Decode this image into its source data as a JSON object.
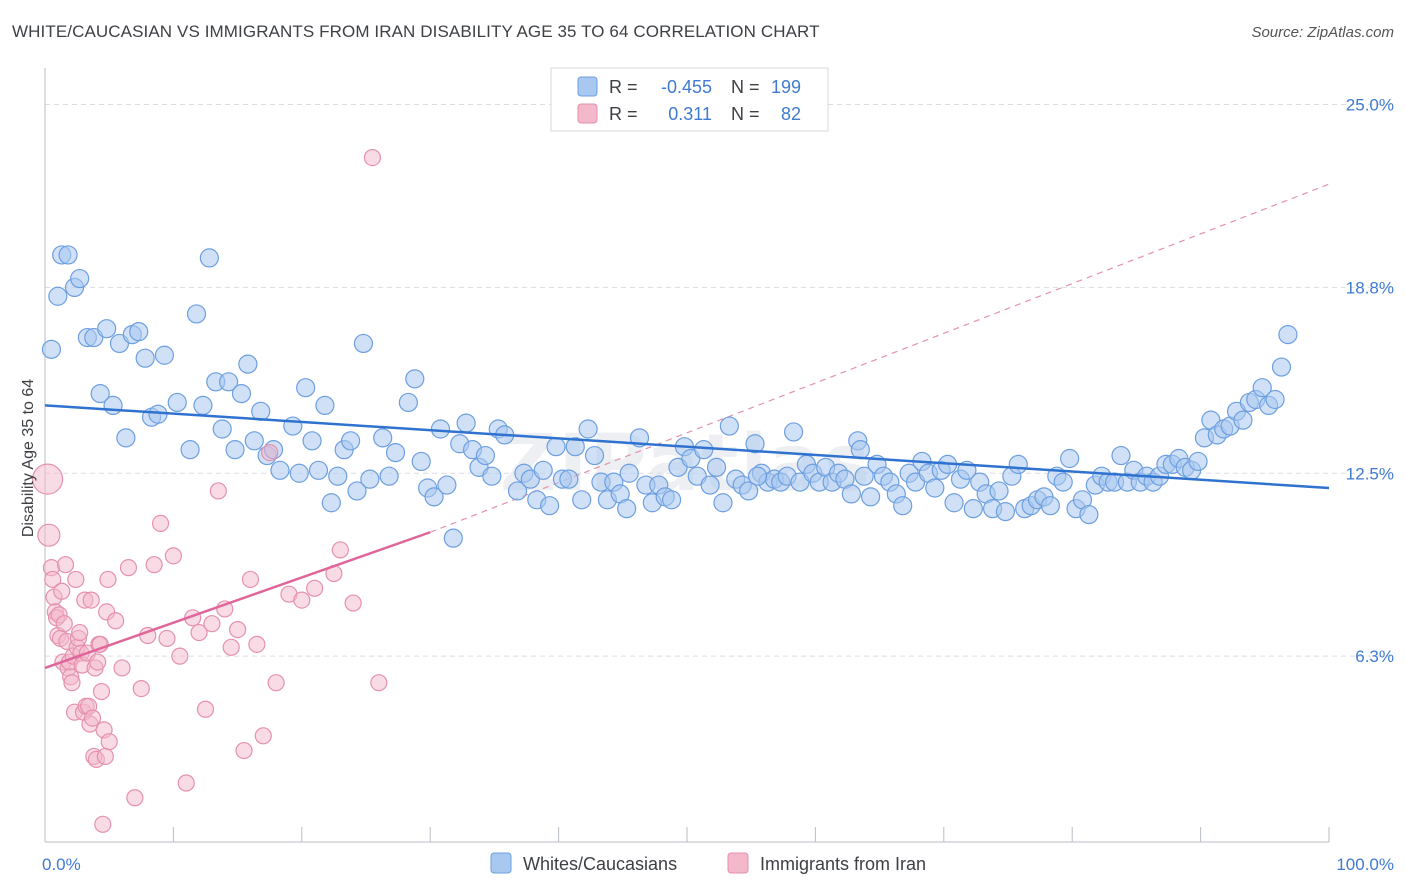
{
  "title": "WHITE/CAUCASIAN VS IMMIGRANTS FROM IRAN DISABILITY AGE 35 TO 64 CORRELATION CHART",
  "source": "Source: ZipAtlas.com",
  "watermark": "ZIPatlas",
  "colors": {
    "blue_fill": "#a9c8f0",
    "blue_stroke": "#6d9fe0",
    "blue_line": "#2f72cf",
    "pink_fill": "#f4b8cb",
    "pink_stroke": "#e591ae",
    "pink_line": "#e0669a",
    "grid": "#d9dde2",
    "axis_text_blue": "#3f7bd0"
  },
  "legend_top": {
    "rows": [
      {
        "r_label": "R =",
        "r_value": "-0.455",
        "n_label": "N =",
        "n_value": "199"
      },
      {
        "r_label": "R =",
        "r_value": "0.311",
        "n_label": "N =",
        "n_value": "82"
      }
    ]
  },
  "legend_bottom": [
    "Whites/Caucasians",
    "Immigrants from Iran"
  ],
  "chart_data": {
    "type": "scatter",
    "title": "WHITE/CAUCASIAN VS IMMIGRANTS FROM IRAN DISABILITY AGE 35 TO 64 CORRELATION CHART",
    "xlabel": "",
    "ylabel": "Disability Age 35 to 64",
    "xlim": [
      0,
      100
    ],
    "ylim": [
      0,
      26
    ],
    "x_tick_labels": [
      "0.0%",
      "100.0%"
    ],
    "y_ticks": [
      6.3,
      12.5,
      18.8,
      25.0
    ],
    "y_tick_labels": [
      "6.3%",
      "12.5%",
      "18.8%",
      "25.0%"
    ],
    "grid": true,
    "legend_position": "top-center",
    "series": [
      {
        "name": "Whites/Caucasians",
        "R": -0.455,
        "N": 199,
        "trend": {
          "x": [
            0,
            100
          ],
          "y": [
            14.8,
            12.0
          ]
        },
        "points": [
          [
            0.5,
            16.7
          ],
          [
            1,
            18.5
          ],
          [
            1.3,
            19.9
          ],
          [
            1.8,
            19.9
          ],
          [
            2.3,
            18.8
          ],
          [
            2.7,
            19.1
          ],
          [
            3.3,
            17.1
          ],
          [
            3.8,
            17.1
          ],
          [
            4.3,
            15.2
          ],
          [
            4.8,
            17.4
          ],
          [
            5.3,
            14.8
          ],
          [
            5.8,
            16.9
          ],
          [
            6.3,
            13.7
          ],
          [
            6.8,
            17.2
          ],
          [
            7.3,
            17.3
          ],
          [
            7.8,
            16.4
          ],
          [
            8.3,
            14.4
          ],
          [
            8.8,
            14.5
          ],
          [
            9.3,
            16.5
          ],
          [
            10.3,
            14.9
          ],
          [
            11.3,
            13.3
          ],
          [
            11.8,
            17.9
          ],
          [
            12.3,
            14.8
          ],
          [
            12.8,
            19.8
          ],
          [
            13.3,
            15.6
          ],
          [
            13.8,
            14.0
          ],
          [
            14.3,
            15.6
          ],
          [
            14.8,
            13.3
          ],
          [
            15.3,
            15.2
          ],
          [
            15.8,
            16.2
          ],
          [
            16.3,
            13.6
          ],
          [
            16.8,
            14.6
          ],
          [
            17.3,
            13.1
          ],
          [
            17.8,
            13.3
          ],
          [
            18.3,
            12.6
          ],
          [
            19.3,
            14.1
          ],
          [
            19.8,
            12.5
          ],
          [
            20.3,
            15.4
          ],
          [
            20.8,
            13.6
          ],
          [
            21.3,
            12.6
          ],
          [
            21.8,
            14.8
          ],
          [
            22.3,
            11.5
          ],
          [
            22.8,
            12.4
          ],
          [
            23.3,
            13.3
          ],
          [
            23.8,
            13.6
          ],
          [
            24.3,
            11.9
          ],
          [
            24.8,
            16.9
          ],
          [
            25.3,
            12.3
          ],
          [
            26.3,
            13.7
          ],
          [
            26.8,
            12.4
          ],
          [
            27.3,
            13.2
          ],
          [
            28.3,
            14.9
          ],
          [
            28.8,
            15.7
          ],
          [
            29.3,
            12.9
          ],
          [
            29.8,
            12.0
          ],
          [
            30.3,
            11.7
          ],
          [
            30.8,
            14.0
          ],
          [
            31.3,
            12.1
          ],
          [
            31.8,
            10.3
          ],
          [
            32.3,
            13.5
          ],
          [
            32.8,
            14.2
          ],
          [
            33.3,
            13.3
          ],
          [
            33.8,
            12.7
          ],
          [
            34.3,
            13.1
          ],
          [
            34.8,
            12.4
          ],
          [
            35.3,
            14.0
          ],
          [
            35.8,
            13.8
          ],
          [
            36.8,
            11.9
          ],
          [
            37.3,
            12.5
          ],
          [
            37.8,
            12.3
          ],
          [
            38.3,
            11.6
          ],
          [
            38.8,
            12.6
          ],
          [
            39.3,
            11.4
          ],
          [
            39.8,
            13.4
          ],
          [
            40.3,
            12.3
          ],
          [
            40.8,
            12.3
          ],
          [
            41.3,
            13.4
          ],
          [
            41.8,
            11.6
          ],
          [
            42.3,
            14.0
          ],
          [
            42.8,
            13.1
          ],
          [
            43.3,
            12.2
          ],
          [
            43.8,
            11.6
          ],
          [
            44.3,
            12.2
          ],
          [
            44.8,
            11.8
          ],
          [
            45.3,
            11.3
          ],
          [
            46.3,
            13.7
          ],
          [
            46.8,
            12.1
          ],
          [
            47.3,
            11.5
          ],
          [
            47.8,
            12.1
          ],
          [
            48.3,
            11.7
          ],
          [
            48.8,
            11.6
          ],
          [
            49.3,
            12.7
          ],
          [
            49.8,
            13.4
          ],
          [
            50.3,
            13.0
          ],
          [
            50.8,
            12.4
          ],
          [
            51.3,
            13.3
          ],
          [
            51.8,
            12.1
          ],
          [
            52.3,
            12.7
          ],
          [
            52.8,
            11.5
          ],
          [
            53.3,
            14.1
          ],
          [
            53.8,
            12.3
          ],
          [
            54.3,
            12.1
          ],
          [
            54.8,
            11.9
          ],
          [
            55.3,
            13.5
          ],
          [
            55.8,
            12.5
          ],
          [
            56.3,
            12.2
          ],
          [
            56.8,
            12.3
          ],
          [
            57.3,
            12.2
          ],
          [
            57.8,
            12.4
          ],
          [
            58.3,
            13.9
          ],
          [
            58.8,
            12.2
          ],
          [
            59.3,
            12.8
          ],
          [
            59.8,
            12.5
          ],
          [
            60.3,
            12.2
          ],
          [
            60.8,
            12.7
          ],
          [
            61.3,
            12.2
          ],
          [
            61.8,
            12.5
          ],
          [
            62.3,
            12.3
          ],
          [
            62.8,
            11.8
          ],
          [
            63.3,
            13.6
          ],
          [
            63.8,
            12.4
          ],
          [
            64.3,
            11.7
          ],
          [
            64.8,
            12.8
          ],
          [
            65.3,
            12.4
          ],
          [
            65.8,
            12.2
          ],
          [
            66.3,
            11.8
          ],
          [
            66.8,
            11.4
          ],
          [
            67.3,
            12.5
          ],
          [
            67.8,
            12.2
          ],
          [
            68.3,
            12.9
          ],
          [
            68.8,
            12.5
          ],
          [
            69.3,
            12.0
          ],
          [
            69.8,
            12.6
          ],
          [
            70.3,
            12.8
          ],
          [
            70.8,
            11.5
          ],
          [
            71.3,
            12.3
          ],
          [
            71.8,
            12.6
          ],
          [
            72.3,
            11.3
          ],
          [
            72.8,
            12.2
          ],
          [
            73.3,
            11.8
          ],
          [
            73.8,
            11.3
          ],
          [
            74.3,
            11.9
          ],
          [
            74.8,
            11.2
          ],
          [
            75.3,
            12.4
          ],
          [
            75.8,
            12.8
          ],
          [
            76.3,
            11.3
          ],
          [
            76.8,
            11.4
          ],
          [
            77.3,
            11.6
          ],
          [
            77.8,
            11.7
          ],
          [
            78.3,
            11.4
          ],
          [
            78.8,
            12.4
          ],
          [
            79.3,
            12.2
          ],
          [
            79.8,
            13.0
          ],
          [
            80.3,
            11.3
          ],
          [
            80.8,
            11.6
          ],
          [
            81.3,
            11.1
          ],
          [
            81.8,
            12.1
          ],
          [
            82.3,
            12.4
          ],
          [
            82.8,
            12.2
          ],
          [
            83.3,
            12.2
          ],
          [
            83.8,
            13.1
          ],
          [
            84.3,
            12.2
          ],
          [
            84.8,
            12.6
          ],
          [
            85.3,
            12.2
          ],
          [
            85.8,
            12.4
          ],
          [
            86.3,
            12.2
          ],
          [
            86.8,
            12.4
          ],
          [
            87.3,
            12.8
          ],
          [
            87.8,
            12.8
          ],
          [
            88.3,
            13.0
          ],
          [
            88.8,
            12.7
          ],
          [
            89.3,
            12.6
          ],
          [
            89.8,
            12.9
          ],
          [
            90.3,
            13.7
          ],
          [
            90.8,
            14.3
          ],
          [
            91.3,
            13.8
          ],
          [
            91.8,
            14.0
          ],
          [
            92.3,
            14.1
          ],
          [
            92.8,
            14.6
          ],
          [
            93.3,
            14.3
          ],
          [
            93.8,
            14.9
          ],
          [
            94.3,
            15.0
          ],
          [
            94.8,
            15.4
          ],
          [
            95.3,
            14.8
          ],
          [
            95.8,
            15.0
          ],
          [
            96.3,
            16.1
          ],
          [
            96.8,
            17.2
          ],
          [
            63.5,
            13.3
          ],
          [
            55.5,
            12.4
          ],
          [
            45.5,
            12.5
          ]
        ]
      },
      {
        "name": "Immigrants from Iran",
        "R": 0.311,
        "N": 82,
        "trend": {
          "x": [
            0,
            30
          ],
          "y": [
            5.9,
            10.5
          ]
        },
        "trend_extension": {
          "x": [
            30,
            100
          ],
          "y": [
            10.5,
            22.3
          ]
        },
        "points": [
          [
            0.2,
            12.3
          ],
          [
            0.3,
            10.4
          ],
          [
            0.5,
            9.3
          ],
          [
            0.6,
            8.9
          ],
          [
            0.7,
            8.3
          ],
          [
            0.8,
            7.8
          ],
          [
            0.9,
            7.6
          ],
          [
            1.0,
            7.0
          ],
          [
            1.1,
            7.7
          ],
          [
            1.2,
            6.9
          ],
          [
            1.3,
            8.5
          ],
          [
            1.4,
            6.1
          ],
          [
            1.5,
            7.4
          ],
          [
            1.6,
            9.4
          ],
          [
            1.7,
            6.8
          ],
          [
            1.8,
            5.9
          ],
          [
            1.9,
            6.1
          ],
          [
            2.0,
            5.6
          ],
          [
            2.1,
            5.4
          ],
          [
            2.2,
            6.3
          ],
          [
            2.3,
            4.4
          ],
          [
            2.4,
            8.9
          ],
          [
            2.5,
            6.6
          ],
          [
            2.6,
            6.9
          ],
          [
            2.7,
            7.1
          ],
          [
            2.8,
            6.4
          ],
          [
            2.9,
            6.0
          ],
          [
            3.0,
            4.4
          ],
          [
            3.1,
            8.2
          ],
          [
            3.2,
            4.6
          ],
          [
            3.3,
            6.4
          ],
          [
            3.4,
            4.6
          ],
          [
            3.5,
            4.0
          ],
          [
            3.6,
            8.2
          ],
          [
            3.7,
            4.2
          ],
          [
            3.8,
            2.9
          ],
          [
            3.9,
            5.9
          ],
          [
            4.0,
            2.8
          ],
          [
            4.1,
            6.1
          ],
          [
            4.2,
            6.7
          ],
          [
            4.3,
            6.7
          ],
          [
            4.4,
            5.1
          ],
          [
            4.5,
            0.6
          ],
          [
            4.6,
            3.8
          ],
          [
            4.7,
            2.9
          ],
          [
            4.8,
            7.8
          ],
          [
            4.9,
            8.9
          ],
          [
            5.0,
            3.4
          ],
          [
            5.5,
            7.5
          ],
          [
            6.0,
            5.9
          ],
          [
            6.5,
            9.3
          ],
          [
            7.0,
            1.5
          ],
          [
            7.5,
            5.2
          ],
          [
            8.0,
            7.0
          ],
          [
            8.5,
            9.4
          ],
          [
            9.0,
            10.8
          ],
          [
            9.5,
            6.9
          ],
          [
            10.0,
            9.7
          ],
          [
            10.5,
            6.3
          ],
          [
            11.0,
            2.0
          ],
          [
            11.5,
            7.6
          ],
          [
            12.0,
            7.1
          ],
          [
            12.5,
            4.5
          ],
          [
            13.0,
            7.4
          ],
          [
            13.5,
            11.9
          ],
          [
            14.0,
            7.9
          ],
          [
            14.5,
            6.6
          ],
          [
            15.0,
            7.2
          ],
          [
            15.5,
            3.1
          ],
          [
            16.0,
            8.9
          ],
          [
            16.5,
            6.7
          ],
          [
            17.0,
            3.6
          ],
          [
            17.5,
            13.2
          ],
          [
            18.0,
            5.4
          ],
          [
            19.0,
            8.4
          ],
          [
            20.0,
            8.2
          ],
          [
            21.0,
            8.6
          ],
          [
            22.5,
            9.1
          ],
          [
            23.0,
            9.9
          ],
          [
            24.0,
            8.1
          ],
          [
            25.5,
            23.2
          ],
          [
            26.0,
            5.4
          ]
        ]
      }
    ]
  }
}
